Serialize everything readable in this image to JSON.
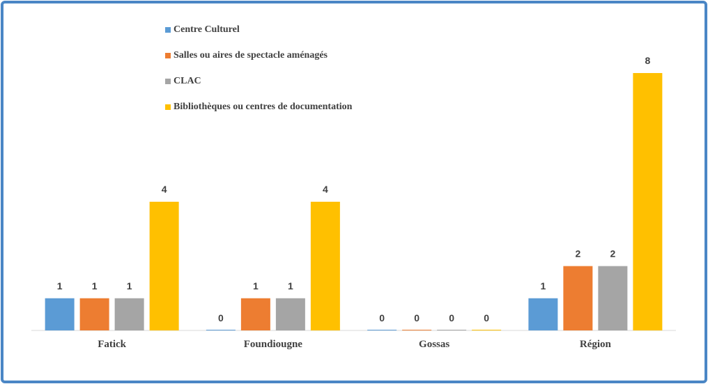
{
  "chart_data": {
    "type": "bar",
    "categories": [
      "Fatick",
      "Foundiougne",
      "Gossas",
      "Région"
    ],
    "series": [
      {
        "name": "Centre  Culturel",
        "color": "#5b9bd5",
        "values": [
          1,
          0,
          0,
          1
        ]
      },
      {
        "name": "Salles ou aires de spectacle aménagés",
        "color": "#ed7d31",
        "values": [
          1,
          1,
          0,
          2
        ]
      },
      {
        "name": "CLAC",
        "color": "#a5a5a5",
        "values": [
          1,
          1,
          0,
          2
        ]
      },
      {
        "name": "Bibliothèques ou  centres de documentation",
        "color": "#ffc000",
        "values": [
          4,
          4,
          0,
          8
        ]
      }
    ]
  }
}
